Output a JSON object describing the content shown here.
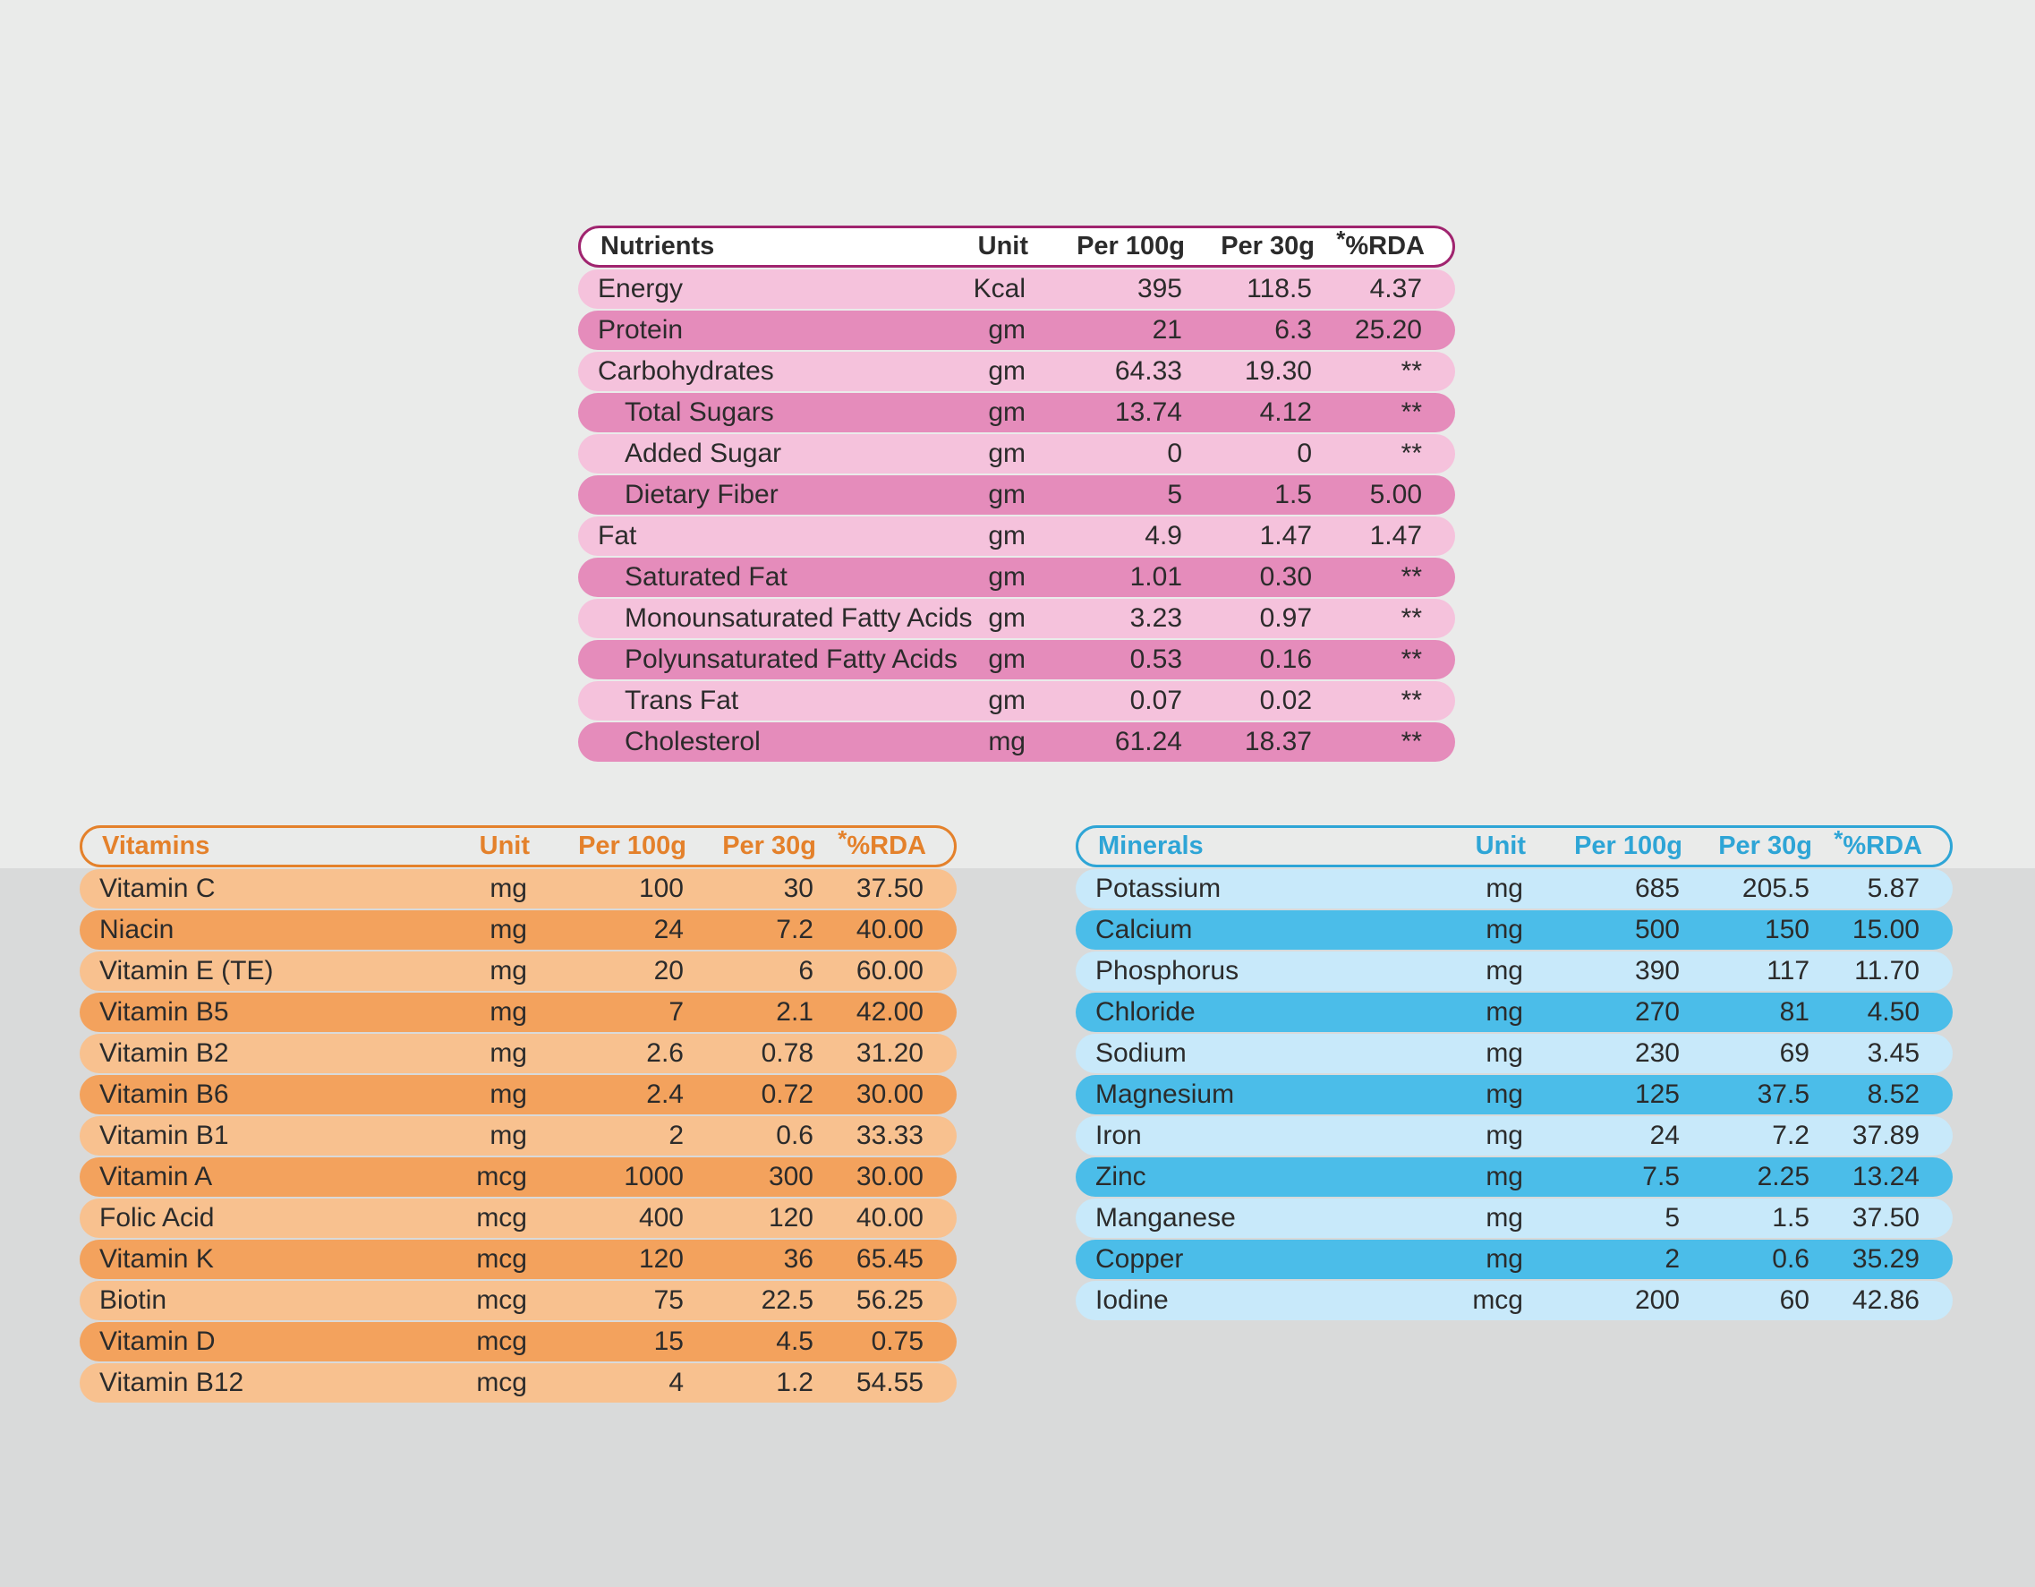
{
  "nutrients": {
    "headers": {
      "name": "Nutrients",
      "unit": "Unit",
      "per100": "Per 100g",
      "per30": "Per 30g",
      "rda_star": "*",
      "rda": "%RDA"
    },
    "rows": [
      {
        "name": "Energy",
        "unit": "Kcal",
        "per100": "395",
        "per30": "118.5",
        "rda": "4.37"
      },
      {
        "name": "Protein",
        "unit": "gm",
        "per100": "21",
        "per30": "6.3",
        "rda": "25.20"
      },
      {
        "name": "Carbohydrates",
        "unit": "gm",
        "per100": "64.33",
        "per30": "19.30",
        "rda": "**"
      },
      {
        "name": "Total Sugars",
        "unit": "gm",
        "per100": "13.74",
        "per30": "4.12",
        "rda": "**"
      },
      {
        "name": "Added Sugar",
        "unit": "gm",
        "per100": "0",
        "per30": "0",
        "rda": "**"
      },
      {
        "name": "Dietary Fiber",
        "unit": "gm",
        "per100": "5",
        "per30": "1.5",
        "rda": "5.00"
      },
      {
        "name": "Fat",
        "unit": "gm",
        "per100": "4.9",
        "per30": "1.47",
        "rda": "1.47"
      },
      {
        "name": "Saturated Fat",
        "unit": "gm",
        "per100": "1.01",
        "per30": "0.30",
        "rda": "**"
      },
      {
        "name": "Monounsaturated Fatty Acids",
        "unit": "gm",
        "per100": "3.23",
        "per30": "0.97",
        "rda": "**"
      },
      {
        "name": "Polyunsaturated Fatty Acids",
        "unit": "gm",
        "per100": "0.53",
        "per30": "0.16",
        "rda": "**"
      },
      {
        "name": "Trans Fat",
        "unit": "gm",
        "per100": "0.07",
        "per30": "0.02",
        "rda": "**"
      },
      {
        "name": "Cholesterol",
        "unit": "mg",
        "per100": "61.24",
        "per30": "18.37",
        "rda": "**"
      }
    ]
  },
  "vitamins": {
    "headers": {
      "name": "Vitamins",
      "unit": "Unit",
      "per100": "Per 100g",
      "per30": "Per 30g",
      "rda_star": "*",
      "rda": "%RDA"
    },
    "rows": [
      {
        "name": "Vitamin C",
        "unit": "mg",
        "per100": "100",
        "per30": "30",
        "rda": "37.50"
      },
      {
        "name": "Niacin",
        "unit": "mg",
        "per100": "24",
        "per30": "7.2",
        "rda": "40.00"
      },
      {
        "name": "Vitamin E (TE)",
        "unit": "mg",
        "per100": "20",
        "per30": "6",
        "rda": "60.00"
      },
      {
        "name": "Vitamin B5",
        "unit": "mg",
        "per100": "7",
        "per30": "2.1",
        "rda": "42.00"
      },
      {
        "name": "Vitamin B2",
        "unit": "mg",
        "per100": "2.6",
        "per30": "0.78",
        "rda": "31.20"
      },
      {
        "name": "Vitamin B6",
        "unit": "mg",
        "per100": "2.4",
        "per30": "0.72",
        "rda": "30.00"
      },
      {
        "name": "Vitamin B1",
        "unit": "mg",
        "per100": "2",
        "per30": "0.6",
        "rda": "33.33"
      },
      {
        "name": "Vitamin A",
        "unit": "mcg",
        "per100": "1000",
        "per30": "300",
        "rda": "30.00"
      },
      {
        "name": "Folic Acid",
        "unit": "mcg",
        "per100": "400",
        "per30": "120",
        "rda": "40.00"
      },
      {
        "name": "Vitamin K",
        "unit": "mcg",
        "per100": "120",
        "per30": "36",
        "rda": "65.45"
      },
      {
        "name": "Biotin",
        "unit": "mcg",
        "per100": "75",
        "per30": "22.5",
        "rda": "56.25"
      },
      {
        "name": "Vitamin D",
        "unit": "mcg",
        "per100": "15",
        "per30": "4.5",
        "rda": "0.75"
      },
      {
        "name": "Vitamin B12",
        "unit": "mcg",
        "per100": "4",
        "per30": "1.2",
        "rda": "54.55"
      }
    ]
  },
  "minerals": {
    "headers": {
      "name": "Minerals",
      "unit": "Unit",
      "per100": "Per 100g",
      "per30": "Per 30g",
      "rda_star": "*",
      "rda": "%RDA"
    },
    "rows": [
      {
        "name": "Potassium",
        "unit": "mg",
        "per100": "685",
        "per30": "205.5",
        "rda": "5.87"
      },
      {
        "name": "Calcium",
        "unit": "mg",
        "per100": "500",
        "per30": "150",
        "rda": "15.00"
      },
      {
        "name": "Phosphorus",
        "unit": "mg",
        "per100": "390",
        "per30": "117",
        "rda": "11.70"
      },
      {
        "name": "Chloride",
        "unit": "mg",
        "per100": "270",
        "per30": "81",
        "rda": "4.50"
      },
      {
        "name": "Sodium",
        "unit": "mg",
        "per100": "230",
        "per30": "69",
        "rda": "3.45"
      },
      {
        "name": "Magnesium",
        "unit": "mg",
        "per100": "125",
        "per30": "37.5",
        "rda": "8.52"
      },
      {
        "name": "Iron",
        "unit": "mg",
        "per100": "24",
        "per30": "7.2",
        "rda": "37.89"
      },
      {
        "name": "Zinc",
        "unit": "mg",
        "per100": "7.5",
        "per30": "2.25",
        "rda": "13.24"
      },
      {
        "name": "Manganese",
        "unit": "mg",
        "per100": "5",
        "per30": "1.5",
        "rda": "37.50"
      },
      {
        "name": "Copper",
        "unit": "mg",
        "per100": "2",
        "per30": "0.6",
        "rda": "35.29"
      },
      {
        "name": "Iodine",
        "unit": "mcg",
        "per100": "200",
        "per30": "60",
        "rda": "42.86"
      }
    ]
  }
}
